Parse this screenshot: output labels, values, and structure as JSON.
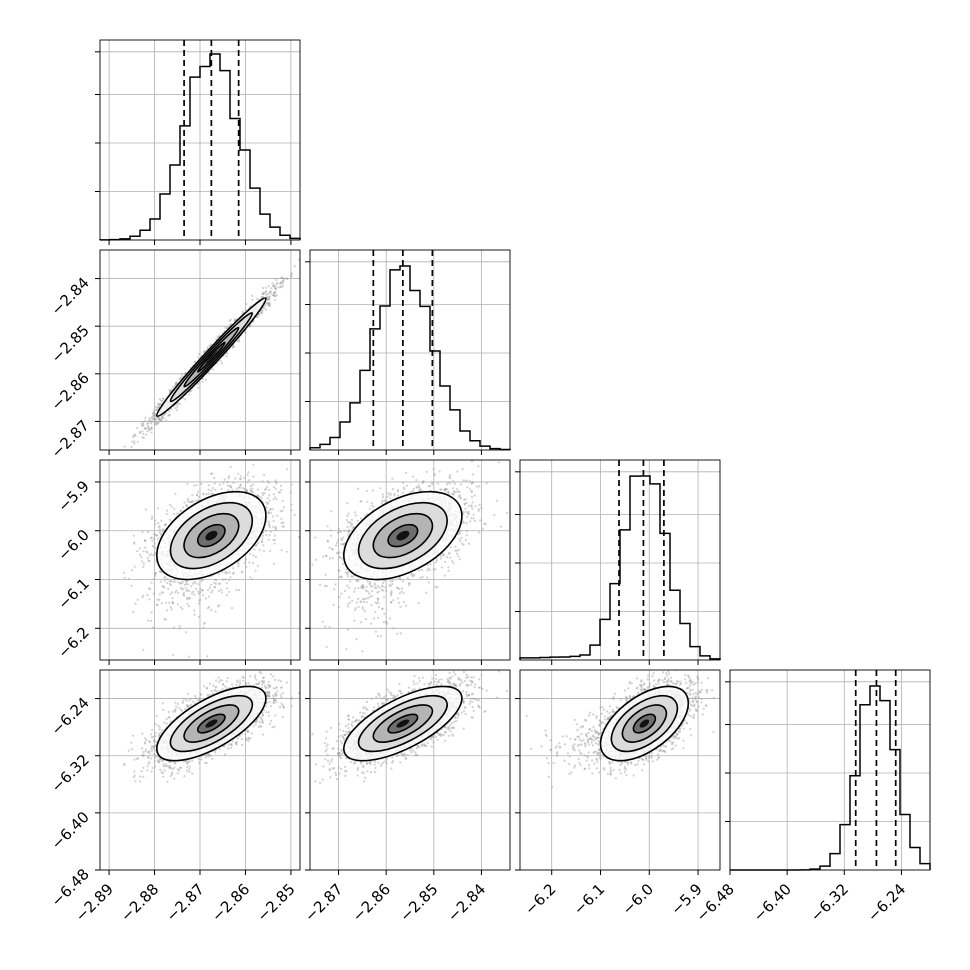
{
  "chart_data": {
    "type": "corner",
    "grid": true,
    "parameters": [
      {
        "range": [
          -2.892,
          -2.848
        ],
        "mean": -2.8675,
        "sd": 0.006,
        "quantiles": [
          -2.8735,
          -2.8675,
          -2.8615
        ],
        "hist_peak": 0.93,
        "ticks": [
          -2.89,
          -2.88,
          -2.87,
          -2.86,
          -2.85
        ],
        "tick_labels": [
          "−2.89",
          "−2.88",
          "−2.87",
          "−2.86",
          "−2.85"
        ]
      },
      {
        "range": [
          -2.876,
          -2.834
        ],
        "mean": -2.8565,
        "sd": 0.0062,
        "quantiles": [
          -2.8627,
          -2.8565,
          -2.8503
        ],
        "hist_peak": 0.92,
        "ticks": [
          -2.87,
          -2.86,
          -2.85,
          -2.84
        ],
        "tick_labels": [
          "−2.87",
          "−2.86",
          "−2.85",
          "−2.84"
        ]
      },
      {
        "range": [
          -6.265,
          -5.855
        ],
        "mean": -6.01,
        "sd": 0.045,
        "left_tail": true,
        "quantiles": [
          -6.062,
          -6.012,
          -5.97
        ],
        "hist_peak": 0.92,
        "ticks": [
          -6.2,
          -6.1,
          -6.0,
          -5.9
        ],
        "tick_labels": [
          "−6.2",
          "−6.1",
          "−6.0",
          "−5.9"
        ]
      },
      {
        "range": [
          -6.48,
          -6.2
        ],
        "mean": -6.275,
        "sd": 0.026,
        "quantiles": [
          -6.304,
          -6.275,
          -6.248
        ],
        "hist_peak": 0.92,
        "ticks": [
          -6.48,
          -6.4,
          -6.32,
          -6.24
        ],
        "tick_labels": [
          "−6.48",
          "−6.40",
          "−6.32",
          "−6.24"
        ]
      }
    ],
    "pairs": [
      {
        "row": 1,
        "col": 0,
        "corr": 0.985
      },
      {
        "row": 2,
        "col": 0,
        "corr": 0.45
      },
      {
        "row": 2,
        "col": 1,
        "corr": 0.45
      },
      {
        "row": 3,
        "col": 0,
        "corr": 0.68
      },
      {
        "row": 3,
        "col": 1,
        "corr": 0.68
      },
      {
        "row": 3,
        "col": 2,
        "corr": 0.55
      }
    ],
    "contour_levels_sigma": [
      0.5,
      1.0,
      1.5,
      2.0
    ],
    "colors": {
      "line": "#000000",
      "points": "#9a9a9a",
      "grid": "#b0b0b0"
    }
  }
}
